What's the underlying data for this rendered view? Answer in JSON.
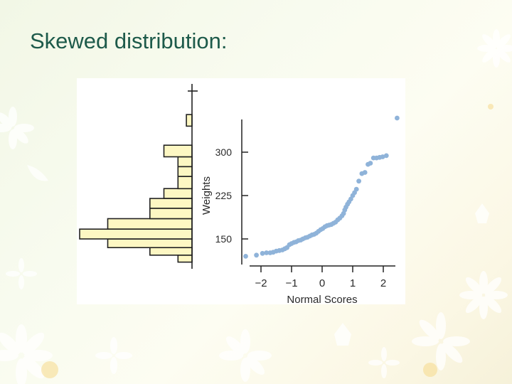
{
  "slide": {
    "title": "Skewed distribution:"
  },
  "colors": {
    "title": "#1d5a4a",
    "histogram_fill": "#fdf7c3",
    "points": "#8fb3d9",
    "axis": "#222222"
  },
  "chart_data": [
    {
      "type": "histogram",
      "orientation": "horizontal",
      "shares_y_axis_with": "normal-probability-plot",
      "bins": [
        {
          "from": 110,
          "to": 122,
          "count": 1
        },
        {
          "from": 122,
          "to": 135,
          "count": 3
        },
        {
          "from": 135,
          "to": 150,
          "count": 6
        },
        {
          "from": 150,
          "to": 167,
          "count": 8
        },
        {
          "from": 167,
          "to": 185,
          "count": 6
        },
        {
          "from": 185,
          "to": 203,
          "count": 3
        },
        {
          "from": 203,
          "to": 220,
          "count": 3
        },
        {
          "from": 220,
          "to": 237,
          "count": 2
        },
        {
          "from": 237,
          "to": 258,
          "count": 1
        },
        {
          "from": 258,
          "to": 275,
          "count": 1
        },
        {
          "from": 275,
          "to": 292,
          "count": 1
        },
        {
          "from": 292,
          "to": 312,
          "count": 2
        },
        {
          "from": 312,
          "to": 345,
          "count": 0
        },
        {
          "from": 345,
          "to": 365,
          "count": 0.4
        },
        {
          "from": 365,
          "to": 390,
          "count": 0
        }
      ]
    },
    {
      "type": "scatter",
      "name": "normal-probability-plot",
      "xlabel": "Normal Scores",
      "ylabel": "Weights",
      "xlim": [
        -2.25,
        2.2
      ],
      "ylim": [
        112,
        360
      ],
      "xticks": [
        -2,
        -1,
        0,
        1,
        2
      ],
      "xtick_labels": [
        "−2",
        "−1",
        "0",
        "1",
        "2"
      ],
      "yticks": [
        150,
        225,
        300
      ],
      "points": [
        {
          "x": -2.5,
          "y": 120
        },
        {
          "x": -2.15,
          "y": 122
        },
        {
          "x": -1.95,
          "y": 125
        },
        {
          "x": -1.82,
          "y": 126
        },
        {
          "x": -1.7,
          "y": 126
        },
        {
          "x": -1.6,
          "y": 127
        },
        {
          "x": -1.5,
          "y": 129
        },
        {
          "x": -1.4,
          "y": 130
        },
        {
          "x": -1.3,
          "y": 131
        },
        {
          "x": -1.22,
          "y": 133
        },
        {
          "x": -1.15,
          "y": 135
        },
        {
          "x": -1.07,
          "y": 140
        },
        {
          "x": -1.0,
          "y": 142
        },
        {
          "x": -0.92,
          "y": 144
        },
        {
          "x": -0.85,
          "y": 145
        },
        {
          "x": -0.78,
          "y": 147
        },
        {
          "x": -0.7,
          "y": 148
        },
        {
          "x": -0.63,
          "y": 150
        },
        {
          "x": -0.55,
          "y": 152
        },
        {
          "x": -0.48,
          "y": 153
        },
        {
          "x": -0.4,
          "y": 155
        },
        {
          "x": -0.33,
          "y": 157
        },
        {
          "x": -0.26,
          "y": 158
        },
        {
          "x": -0.19,
          "y": 160
        },
        {
          "x": -0.12,
          "y": 163
        },
        {
          "x": -0.05,
          "y": 166
        },
        {
          "x": 0.02,
          "y": 168
        },
        {
          "x": 0.09,
          "y": 171
        },
        {
          "x": 0.16,
          "y": 173
        },
        {
          "x": 0.23,
          "y": 174
        },
        {
          "x": 0.3,
          "y": 175
        },
        {
          "x": 0.37,
          "y": 177
        },
        {
          "x": 0.44,
          "y": 179
        },
        {
          "x": 0.51,
          "y": 183
        },
        {
          "x": 0.58,
          "y": 186
        },
        {
          "x": 0.65,
          "y": 190
        },
        {
          "x": 0.7,
          "y": 194
        },
        {
          "x": 0.74,
          "y": 200
        },
        {
          "x": 0.78,
          "y": 205
        },
        {
          "x": 0.83,
          "y": 210
        },
        {
          "x": 0.88,
          "y": 214
        },
        {
          "x": 0.94,
          "y": 219
        },
        {
          "x": 1.0,
          "y": 225
        },
        {
          "x": 1.06,
          "y": 230
        },
        {
          "x": 1.12,
          "y": 236
        },
        {
          "x": 1.2,
          "y": 250
        },
        {
          "x": 1.3,
          "y": 263
        },
        {
          "x": 1.4,
          "y": 265
        },
        {
          "x": 1.5,
          "y": 279
        },
        {
          "x": 1.58,
          "y": 281
        },
        {
          "x": 1.68,
          "y": 290
        },
        {
          "x": 1.78,
          "y": 290
        },
        {
          "x": 1.88,
          "y": 291
        },
        {
          "x": 1.98,
          "y": 292
        },
        {
          "x": 2.1,
          "y": 294
        },
        {
          "x": 2.45,
          "y": 359
        }
      ]
    }
  ]
}
